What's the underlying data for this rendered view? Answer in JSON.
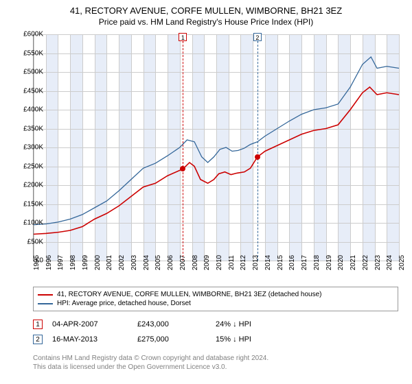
{
  "title_line1": "41, RECTORY AVENUE, CORFE MULLEN, WIMBORNE, BH21 3EZ",
  "title_line2": "Price paid vs. HM Land Registry's House Price Index (HPI)",
  "chart": {
    "type": "line",
    "x_axis": {
      "min": 1995,
      "max": 2025,
      "ticks": [
        1995,
        1996,
        1997,
        1998,
        1999,
        2000,
        2001,
        2002,
        2003,
        2004,
        2005,
        2006,
        2007,
        2008,
        2009,
        2010,
        2011,
        2012,
        2013,
        2014,
        2015,
        2016,
        2017,
        2018,
        2019,
        2020,
        2021,
        2022,
        2023,
        2024,
        2025
      ]
    },
    "y_axis": {
      "min": 0,
      "max": 600000,
      "ticks": [
        0,
        50000,
        100000,
        150000,
        200000,
        250000,
        300000,
        350000,
        400000,
        450000,
        500000,
        550000,
        600000
      ],
      "tick_labels": [
        "£0",
        "£50K",
        "£100K",
        "£150K",
        "£200K",
        "£250K",
        "£300K",
        "£350K",
        "£400K",
        "£450K",
        "£500K",
        "£550K",
        "£600K"
      ]
    },
    "grid_color": "#cccccc",
    "background_color": "#ffffff",
    "band_color": "#e4ebf7",
    "altbands": [
      [
        1996,
        1997
      ],
      [
        1998,
        1999
      ],
      [
        2000,
        2001
      ],
      [
        2002,
        2003
      ],
      [
        2004,
        2005
      ],
      [
        2006,
        2007
      ],
      [
        2008,
        2009
      ],
      [
        2010,
        2011
      ],
      [
        2012,
        2013
      ],
      [
        2014,
        2015
      ],
      [
        2016,
        2017
      ],
      [
        2018,
        2019
      ],
      [
        2020,
        2021
      ],
      [
        2022,
        2023
      ],
      [
        2024,
        2025
      ]
    ],
    "series": [
      {
        "name": "price_paid",
        "label": "41, RECTORY AVENUE, CORFE MULLEN, WIMBORNE, BH21 3EZ (detached house)",
        "color": "#cc0000",
        "width": 1.6,
        "points": [
          [
            1995,
            70000
          ],
          [
            1996,
            72000
          ],
          [
            1997,
            75000
          ],
          [
            1998,
            80000
          ],
          [
            1999,
            90000
          ],
          [
            2000,
            110000
          ],
          [
            2001,
            125000
          ],
          [
            2002,
            145000
          ],
          [
            2003,
            170000
          ],
          [
            2004,
            195000
          ],
          [
            2005,
            205000
          ],
          [
            2006,
            225000
          ],
          [
            2007.26,
            243000
          ],
          [
            2007.8,
            260000
          ],
          [
            2008.2,
            250000
          ],
          [
            2008.7,
            215000
          ],
          [
            2009.3,
            205000
          ],
          [
            2009.8,
            215000
          ],
          [
            2010.2,
            230000
          ],
          [
            2010.7,
            235000
          ],
          [
            2011.2,
            228000
          ],
          [
            2011.7,
            232000
          ],
          [
            2012.3,
            235000
          ],
          [
            2012.8,
            245000
          ],
          [
            2013.38,
            275000
          ],
          [
            2014,
            290000
          ],
          [
            2015,
            305000
          ],
          [
            2016,
            320000
          ],
          [
            2017,
            335000
          ],
          [
            2018,
            345000
          ],
          [
            2019,
            350000
          ],
          [
            2020,
            360000
          ],
          [
            2021,
            400000
          ],
          [
            2022,
            445000
          ],
          [
            2022.6,
            460000
          ],
          [
            2023.2,
            440000
          ],
          [
            2024,
            445000
          ],
          [
            2025,
            440000
          ]
        ]
      },
      {
        "name": "hpi",
        "label": "HPI: Average price, detached house, Dorset",
        "color": "#336699",
        "width": 1.3,
        "points": [
          [
            1995,
            95000
          ],
          [
            1996,
            97000
          ],
          [
            1997,
            102000
          ],
          [
            1998,
            110000
          ],
          [
            1999,
            122000
          ],
          [
            2000,
            140000
          ],
          [
            2001,
            158000
          ],
          [
            2002,
            185000
          ],
          [
            2003,
            215000
          ],
          [
            2004,
            245000
          ],
          [
            2005,
            258000
          ],
          [
            2006,
            278000
          ],
          [
            2007,
            300000
          ],
          [
            2007.6,
            320000
          ],
          [
            2008.2,
            315000
          ],
          [
            2008.8,
            275000
          ],
          [
            2009.3,
            260000
          ],
          [
            2009.8,
            275000
          ],
          [
            2010.3,
            295000
          ],
          [
            2010.8,
            300000
          ],
          [
            2011.3,
            290000
          ],
          [
            2011.8,
            292000
          ],
          [
            2012.3,
            298000
          ],
          [
            2012.8,
            308000
          ],
          [
            2013.38,
            315000
          ],
          [
            2014,
            330000
          ],
          [
            2015,
            350000
          ],
          [
            2016,
            370000
          ],
          [
            2017,
            388000
          ],
          [
            2018,
            400000
          ],
          [
            2019,
            405000
          ],
          [
            2020,
            415000
          ],
          [
            2021,
            460000
          ],
          [
            2022,
            520000
          ],
          [
            2022.7,
            540000
          ],
          [
            2023.2,
            510000
          ],
          [
            2024,
            515000
          ],
          [
            2025,
            510000
          ]
        ]
      }
    ],
    "sale_markers": [
      {
        "n": 1,
        "color": "#cc0000",
        "x": 2007.26,
        "y": 243000
      },
      {
        "n": 2,
        "color": "#336699",
        "x": 2013.38,
        "y": 275000
      }
    ]
  },
  "legend": {
    "box_border": "#999999"
  },
  "sales_table": {
    "rows": [
      {
        "n": 1,
        "color": "#cc0000",
        "date": "04-APR-2007",
        "price": "£243,000",
        "delta": "24% ↓ HPI"
      },
      {
        "n": 2,
        "color": "#336699",
        "date": "16-MAY-2013",
        "price": "£275,000",
        "delta": "15% ↓ HPI"
      }
    ]
  },
  "footer": {
    "line1": "Contains HM Land Registry data © Crown copyright and database right 2024.",
    "line2": "This data is licensed under the Open Government Licence v3.0."
  }
}
